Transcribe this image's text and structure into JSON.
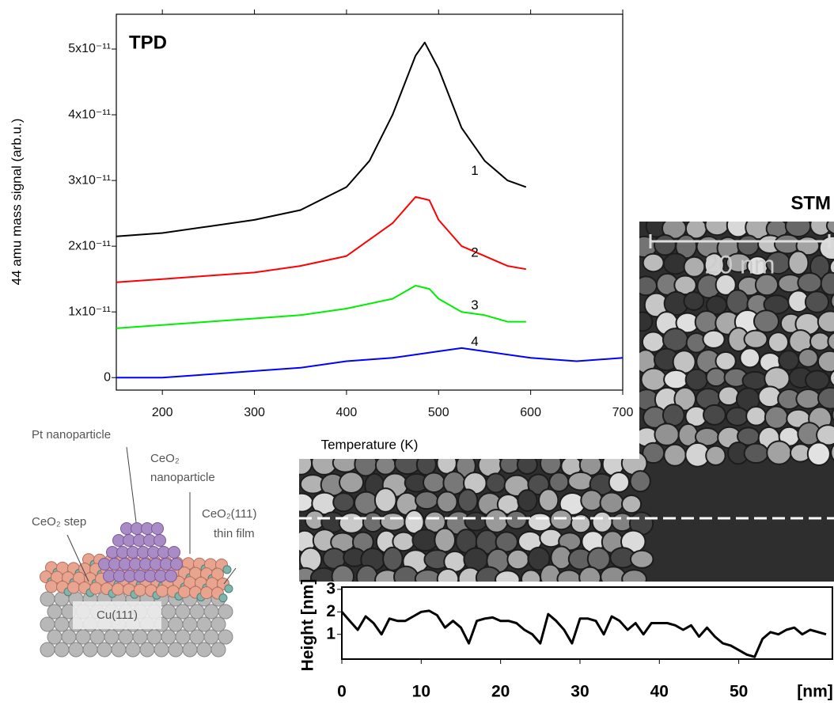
{
  "chart_data": [
    {
      "type": "line",
      "title": "TPD",
      "xlabel": "Temperature (K)",
      "ylabel": "44 amu mass signal (arb.u.)",
      "xlim": [
        150,
        700
      ],
      "ylim": [
        -1.9e-12,
        5.53e-11
      ],
      "xticks": [
        200,
        300,
        400,
        500,
        600,
        700
      ],
      "yticks": [
        0,
        {
          "value": 1e-11,
          "label": "1x10⁻¹¹"
        },
        {
          "value": 2e-11,
          "label": "2x10⁻¹¹"
        },
        {
          "value": 3e-11,
          "label": "3x10⁻¹¹"
        },
        {
          "value": 4e-11,
          "label": "4x10⁻¹¹"
        },
        {
          "value": 5e-11,
          "label": "5x10⁻¹¹"
        }
      ],
      "series": [
        {
          "name": "1",
          "color": "#000000",
          "x": [
            150,
            200,
            250,
            300,
            350,
            400,
            425,
            450,
            475,
            485,
            500,
            525,
            550,
            575,
            595
          ],
          "values": [
            2.15e-11,
            2.2e-11,
            2.3e-11,
            2.4e-11,
            2.55e-11,
            2.9e-11,
            3.3e-11,
            4e-11,
            4.9e-11,
            5.1e-11,
            4.7e-11,
            3.8e-11,
            3.3e-11,
            3e-11,
            2.9e-11
          ]
        },
        {
          "name": "2",
          "color": "#ff0000",
          "x": [
            150,
            200,
            250,
            300,
            350,
            400,
            450,
            475,
            490,
            500,
            525,
            550,
            575,
            595
          ],
          "values": [
            1.45e-11,
            1.5e-11,
            1.55e-11,
            1.6e-11,
            1.7e-11,
            1.85e-11,
            2.35e-11,
            2.75e-11,
            2.7e-11,
            2.4e-11,
            2e-11,
            1.85e-11,
            1.7e-11,
            1.65e-11
          ]
        },
        {
          "name": "3",
          "color": "#00ee00",
          "x": [
            150,
            200,
            250,
            300,
            350,
            400,
            450,
            475,
            490,
            500,
            525,
            550,
            575,
            595
          ],
          "values": [
            7.5e-12,
            8e-12,
            8.5e-12,
            9e-12,
            9.5e-12,
            1.05e-11,
            1.2e-11,
            1.4e-11,
            1.35e-11,
            1.2e-11,
            1e-11,
            9.5e-12,
            8.5e-12,
            8.5e-12
          ]
        },
        {
          "name": "4",
          "color": "#0000ff",
          "x": [
            150,
            200,
            250,
            300,
            350,
            400,
            450,
            500,
            525,
            550,
            600,
            650,
            700
          ],
          "values": [
            0,
            0,
            5e-13,
            1e-12,
            1.5e-12,
            2.5e-12,
            3e-12,
            4e-12,
            4.5e-12,
            4e-12,
            3e-12,
            2.5e-12,
            3e-12
          ]
        }
      ]
    },
    {
      "type": "line",
      "xlabel": "[nm]",
      "ylabel": "Height [nm]",
      "color": "#000000",
      "xlim": [
        0,
        61.8
      ],
      "ylim": [
        -0.1,
        3.1
      ],
      "xticks": [
        0,
        10,
        20,
        30,
        40,
        50
      ],
      "yticks": [
        1,
        2,
        3
      ],
      "x": [
        0,
        1,
        2,
        3,
        4,
        5,
        6,
        7,
        8,
        9,
        10,
        11,
        12,
        13,
        14,
        15,
        16,
        17,
        18,
        19,
        20,
        21,
        22,
        23,
        24,
        25,
        26,
        27,
        28,
        29,
        30,
        31,
        32,
        33,
        34,
        35,
        36,
        37,
        38,
        39,
        40,
        41,
        42,
        43,
        44,
        45,
        46,
        47,
        48,
        49,
        50,
        51,
        52,
        53,
        54,
        55,
        56,
        57,
        58,
        59,
        61
      ],
      "values": [
        2.0,
        1.6,
        1.2,
        1.8,
        1.5,
        1.0,
        1.7,
        1.6,
        1.6,
        1.8,
        2.0,
        2.05,
        1.85,
        1.3,
        1.6,
        1.3,
        0.6,
        1.6,
        1.7,
        1.75,
        1.6,
        1.6,
        1.5,
        1.2,
        1.0,
        0.6,
        1.9,
        1.6,
        1.2,
        0.6,
        1.7,
        1.7,
        1.6,
        1.0,
        1.8,
        1.6,
        1.2,
        1.5,
        1.0,
        1.5,
        1.5,
        1.5,
        1.4,
        1.2,
        1.4,
        0.9,
        1.3,
        0.9,
        0.6,
        0.5,
        0.3,
        0.1,
        0.0,
        0.8,
        1.1,
        1.0,
        1.2,
        1.3,
        1.0,
        1.2,
        1.0
      ]
    }
  ],
  "image": {
    "title": "STM",
    "scale_bar": "20 nm"
  },
  "diagram": {
    "pt_label": "Pt nanoparticle",
    "ceo2_nanoparticle_label": [
      "CeO₂",
      "nanoparticle"
    ],
    "step_label": "CeO₂ step",
    "film_label": [
      "CeO₂(111)",
      "thin film"
    ],
    "substrate_label": "Cu(111)"
  }
}
